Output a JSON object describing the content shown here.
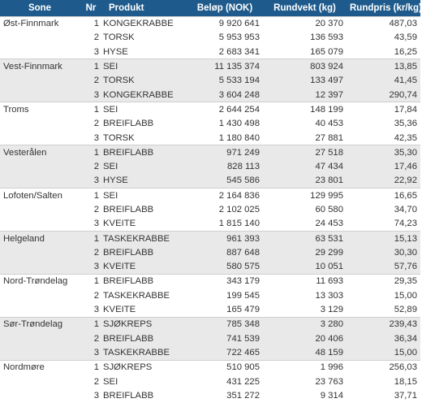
{
  "headers": {
    "sone": "Sone",
    "nr": "Nr",
    "produkt": "Produkt",
    "belop": "Beløp (NOK)",
    "rundvekt": "Rundvekt (kg)",
    "rundpris": "Rundpris (kr/kg)"
  },
  "rows": [
    {
      "sone": "Øst-Finnmark",
      "nr": "1",
      "produkt": "KONGEKRABBE",
      "belop": "9 920 641",
      "rundvekt": "20 370",
      "rundpris": "487,03"
    },
    {
      "sone": "",
      "nr": "2",
      "produkt": "TORSK",
      "belop": "5 953 953",
      "rundvekt": "136 593",
      "rundpris": "43,59"
    },
    {
      "sone": "",
      "nr": "3",
      "produkt": "HYSE",
      "belop": "2 683 341",
      "rundvekt": "165 079",
      "rundpris": "16,25"
    },
    {
      "sone": "Vest-Finnmark",
      "nr": "1",
      "produkt": "SEI",
      "belop": "11 135 374",
      "rundvekt": "803 924",
      "rundpris": "13,85"
    },
    {
      "sone": "",
      "nr": "2",
      "produkt": "TORSK",
      "belop": "5 533 194",
      "rundvekt": "133 497",
      "rundpris": "41,45"
    },
    {
      "sone": "",
      "nr": "3",
      "produkt": "KONGEKRABBE",
      "belop": "3 604 248",
      "rundvekt": "12 397",
      "rundpris": "290,74"
    },
    {
      "sone": "Troms",
      "nr": "1",
      "produkt": "SEI",
      "belop": "2 644 254",
      "rundvekt": "148 199",
      "rundpris": "17,84"
    },
    {
      "sone": "",
      "nr": "2",
      "produkt": "BREIFLABB",
      "belop": "1 430 498",
      "rundvekt": "40 453",
      "rundpris": "35,36"
    },
    {
      "sone": "",
      "nr": "3",
      "produkt": "TORSK",
      "belop": "1 180 840",
      "rundvekt": "27 881",
      "rundpris": "42,35"
    },
    {
      "sone": "Vesterålen",
      "nr": "1",
      "produkt": "BREIFLABB",
      "belop": "971 249",
      "rundvekt": "27 518",
      "rundpris": "35,30"
    },
    {
      "sone": "",
      "nr": "2",
      "produkt": "SEI",
      "belop": "828 113",
      "rundvekt": "47 434",
      "rundpris": "17,46"
    },
    {
      "sone": "",
      "nr": "3",
      "produkt": "HYSE",
      "belop": "545 586",
      "rundvekt": "23 801",
      "rundpris": "22,92"
    },
    {
      "sone": "Lofoten/Salten",
      "nr": "1",
      "produkt": "SEI",
      "belop": "2 164 836",
      "rundvekt": "129 995",
      "rundpris": "16,65"
    },
    {
      "sone": "",
      "nr": "2",
      "produkt": "BREIFLABB",
      "belop": "2 102 025",
      "rundvekt": "60 580",
      "rundpris": "34,70"
    },
    {
      "sone": "",
      "nr": "3",
      "produkt": "KVEITE",
      "belop": "1 815 140",
      "rundvekt": "24 453",
      "rundpris": "74,23"
    },
    {
      "sone": "Helgeland",
      "nr": "1",
      "produkt": "TASKEKRABBE",
      "belop": "961 393",
      "rundvekt": "63 531",
      "rundpris": "15,13"
    },
    {
      "sone": "",
      "nr": "2",
      "produkt": "BREIFLABB",
      "belop": "887 648",
      "rundvekt": "29 299",
      "rundpris": "30,30"
    },
    {
      "sone": "",
      "nr": "3",
      "produkt": "KVEITE",
      "belop": "580 575",
      "rundvekt": "10 051",
      "rundpris": "57,76"
    },
    {
      "sone": "Nord-Trøndelag",
      "nr": "1",
      "produkt": "BREIFLABB",
      "belop": "343 179",
      "rundvekt": "11 693",
      "rundpris": "29,35"
    },
    {
      "sone": "",
      "nr": "2",
      "produkt": "TASKEKRABBE",
      "belop": "199 545",
      "rundvekt": "13 303",
      "rundpris": "15,00"
    },
    {
      "sone": "",
      "nr": "3",
      "produkt": "KVEITE",
      "belop": "165 479",
      "rundvekt": "3 129",
      "rundpris": "52,89"
    },
    {
      "sone": "Sør-Trøndelag",
      "nr": "1",
      "produkt": "SJØKREPS",
      "belop": "785 348",
      "rundvekt": "3 280",
      "rundpris": "239,43"
    },
    {
      "sone": "",
      "nr": "2",
      "produkt": "BREIFLABB",
      "belop": "741 539",
      "rundvekt": "20 406",
      "rundpris": "36,34"
    },
    {
      "sone": "",
      "nr": "3",
      "produkt": "TASKEKRABBE",
      "belop": "722 465",
      "rundvekt": "48 159",
      "rundpris": "15,00"
    },
    {
      "sone": "Nordmøre",
      "nr": "1",
      "produkt": "SJØKREPS",
      "belop": "510 905",
      "rundvekt": "1 996",
      "rundpris": "256,03"
    },
    {
      "sone": "",
      "nr": "2",
      "produkt": "SEI",
      "belop": "431 225",
      "rundvekt": "23 763",
      "rundpris": "18,15"
    },
    {
      "sone": "",
      "nr": "3",
      "produkt": "BREIFLABB",
      "belop": "351 272",
      "rundvekt": "9 314",
      "rundpris": "37,71"
    }
  ]
}
